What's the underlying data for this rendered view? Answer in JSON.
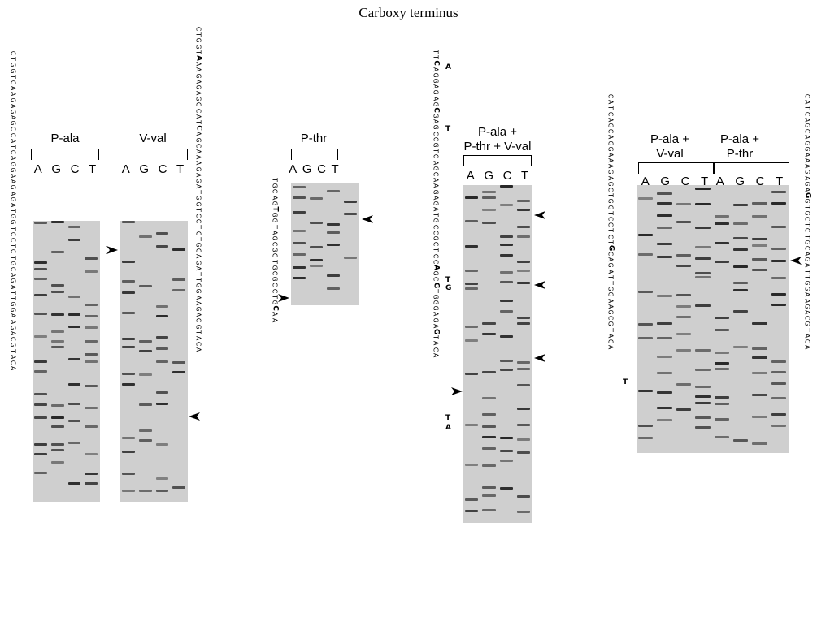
{
  "title": "Carboxy terminus",
  "panels": [
    {
      "labels": [
        "P-ala",
        "V-val"
      ],
      "lanes": [
        "A",
        "G",
        "C",
        "T"
      ]
    },
    {
      "labels": [
        "P-thr"
      ],
      "lanes": [
        "A",
        "G",
        "C",
        "T"
      ]
    },
    {
      "labels": [
        "P-ala +\nP-thr + V-val"
      ],
      "lanes": [
        "A",
        "G",
        "C",
        "T"
      ]
    },
    {
      "labels": [
        "P-ala +\nV-val",
        "P-ala +\nP-thr"
      ],
      "lanes": [
        "A",
        "G",
        "C",
        "T"
      ]
    }
  ],
  "sequences": {
    "s1": "CTGGTCAAGAGAGCCATCAGGAAGAGATGGTCCTCTGCAGATTGGAAGACGTACA",
    "s2": "CTGGTAAAGAGAGCCATCAGCAAAGAGATGGTCCTCTGCAGATTGGAAGACGTACA",
    "s3": "TGCAGTGGTAGCGCTGCGCCTGCAA",
    "s4": "TTCAGGAGAGCGAGCCGTCAGCAAGAGATGCCGCTCCAGCGTGGGAGAGTACA",
    "s5": "CATCAGCAGGAAAGAGCTGGTCCTCTGCAGATTGGAAGCGTACA",
    "s6": "CATCAGCAGGAAAGAGAGGTGCTCTGCAGATTGGAAGACGTACA"
  },
  "mutations": [
    "A",
    "T",
    "T",
    "G",
    "T",
    "A",
    "T"
  ]
}
